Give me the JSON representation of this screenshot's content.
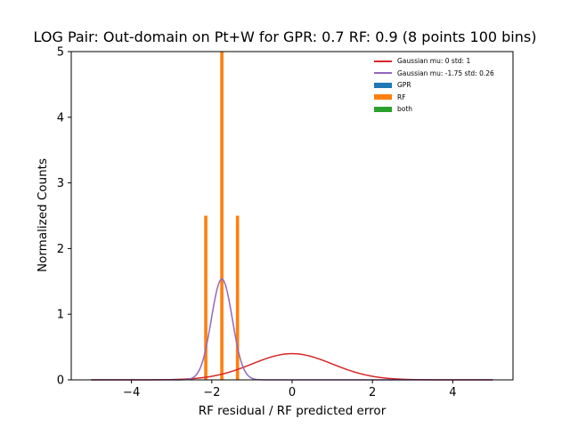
{
  "chart_data": {
    "type": "histogram",
    "title": "LOG Pair: Out-domain on Pt+W for GPR: 0.7 RF: 0.9 (8 points 100 bins)",
    "xlabel": "RF residual / RF predicted error",
    "ylabel": "Normalized Counts",
    "xlim": [
      -5.5,
      5.5
    ],
    "ylim": [
      0,
      5
    ],
    "xticks": [
      -4,
      -2,
      0,
      2,
      4
    ],
    "xtick_labels": [
      "−4",
      "−2",
      "0",
      "2",
      "4"
    ],
    "yticks": [
      0,
      1,
      2,
      3,
      4,
      5
    ],
    "ytick_labels": [
      "0",
      "1",
      "2",
      "3",
      "4",
      "5"
    ],
    "grid": false,
    "legend_position": "top-right",
    "bars": {
      "series": "RF",
      "color": "#ff7f0e",
      "bin_width": 0.08,
      "bins": [
        {
          "x": -2.15,
          "height": 2.5
        },
        {
          "x": -1.75,
          "height": 5.0
        },
        {
          "x": -1.36,
          "height": 2.5
        }
      ]
    },
    "curves": [
      {
        "name": "Gaussian mu: 0 std: 1",
        "mu": 0,
        "std": 1,
        "color": "#d62728",
        "x_range": [
          -5,
          5
        ]
      },
      {
        "name": "Gaussian mu: -1.75 std: 0.26",
        "mu": -1.75,
        "std": 0.26,
        "color": "#9467bd",
        "x_range": [
          -5,
          5
        ]
      }
    ],
    "legend": [
      {
        "label": "Gaussian mu: 0 std: 1",
        "kind": "line",
        "color": "#d62728"
      },
      {
        "label": "Gaussian mu: -1.75 std: 0.26",
        "kind": "line",
        "color": "#9467bd"
      },
      {
        "label": "GPR",
        "kind": "bar",
        "color": "#1f77b4"
      },
      {
        "label": "RF",
        "kind": "bar",
        "color": "#ff7f0e"
      },
      {
        "label": "both",
        "kind": "bar",
        "color": "#2ca02c"
      }
    ]
  }
}
